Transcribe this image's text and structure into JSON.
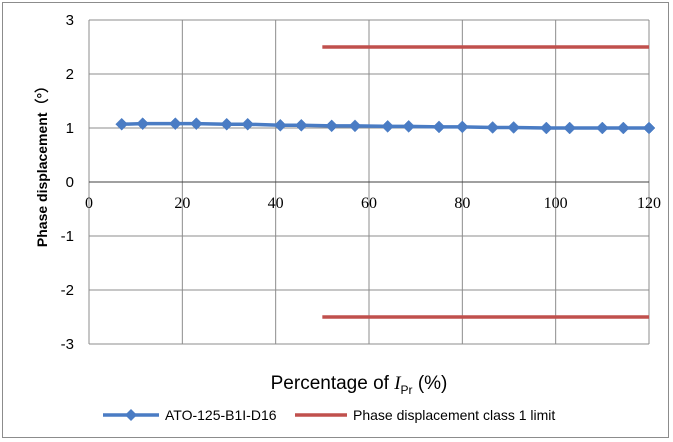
{
  "chart_data": {
    "type": "line",
    "title": "",
    "xlabel_prefix": "Percentage of ",
    "xlabel_var": "I",
    "xlabel_sub": "Pr",
    "xlabel_suffix": " (%)",
    "ylabel": "Phase displacement（°）",
    "xlim": [
      0,
      120
    ],
    "ylim": [
      -3,
      3
    ],
    "xticks": [
      0,
      20,
      40,
      60,
      80,
      100,
      120
    ],
    "yticks": [
      3,
      2,
      1,
      0,
      -1,
      -2,
      -3
    ],
    "grid": true,
    "legend_position": "bottom",
    "series": [
      {
        "name": "ATO-125-B1I-D16",
        "color": "#4a7cc4",
        "marker": "diamond",
        "x": [
          7,
          11.5,
          18.5,
          23,
          29.5,
          34,
          41,
          45.5,
          52,
          57,
          64,
          68.5,
          75,
          80,
          86.5,
          91,
          98,
          103,
          110,
          114.5,
          120
        ],
        "y": [
          1.07,
          1.08,
          1.08,
          1.08,
          1.07,
          1.07,
          1.05,
          1.05,
          1.04,
          1.04,
          1.03,
          1.03,
          1.02,
          1.02,
          1.01,
          1.01,
          1.0,
          1.0,
          1.0,
          1.0,
          1.0
        ]
      },
      {
        "name": "Phase displacement class 1 limit",
        "color": "#c0504d",
        "marker": "none",
        "segments": [
          {
            "x": [
              50,
              120
            ],
            "y": [
              2.5,
              2.5
            ]
          },
          {
            "x": [
              50,
              120
            ],
            "y": [
              -2.5,
              -2.5
            ]
          }
        ]
      }
    ]
  }
}
